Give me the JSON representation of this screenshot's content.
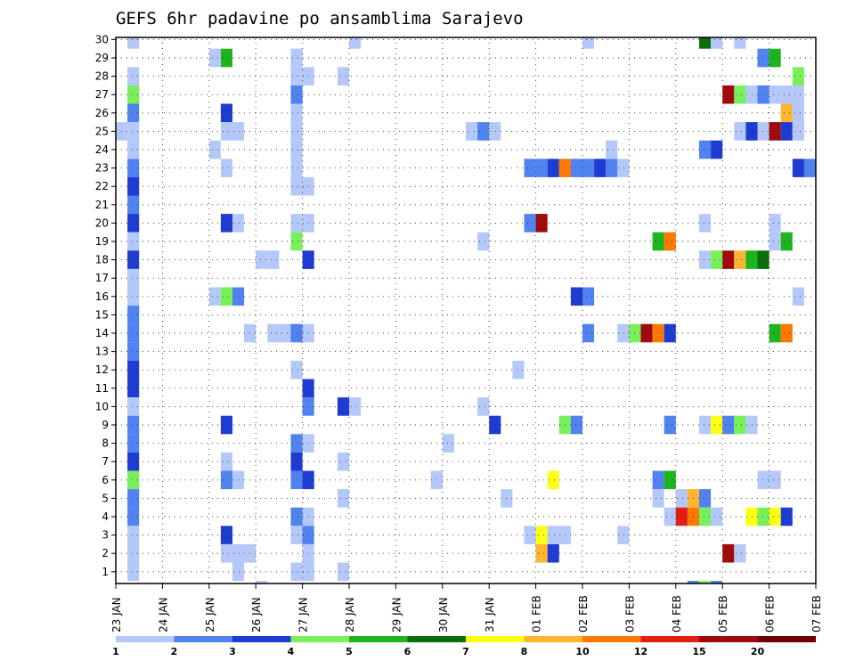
{
  "chart_data": {
    "type": "heatmap",
    "title": "GEFS 6hr padavine po ansamblima Sarajevo",
    "y_members": [
      1,
      30
    ],
    "x_tick_labels": [
      "23 JAN",
      "24 JAN",
      "25 JAN",
      "26 JAN",
      "27 JAN",
      "28 JAN",
      "29 JAN",
      "30 JAN",
      "31 JAN",
      "01 FEB",
      "02 FEB",
      "03 FEB",
      "04 FEB",
      "05 FEB",
      "06 FEB",
      "07 FEB"
    ],
    "grid": true,
    "legend": {
      "position": "bottom",
      "labels": [
        "1",
        "2",
        "3",
        "4",
        "5",
        "6",
        "7",
        "8",
        "10",
        "12",
        "15",
        "20"
      ],
      "colors": [
        "#b4c8fa",
        "#5082f0",
        "#1e3cd2",
        "#78f05a",
        "#1eb41e",
        "#0a6e0a",
        "#ffff14",
        "#ffb432",
        "#ff7800",
        "#e11e14",
        "#a00a0a",
        "#6e0000"
      ]
    },
    "cells": [
      {
        "m": 30,
        "s": 1,
        "c": 1
      },
      {
        "m": 30,
        "s": 20,
        "c": 1
      },
      {
        "m": 30,
        "s": 40,
        "c": 1
      },
      {
        "m": 30,
        "s": 50,
        "c": 6
      },
      {
        "m": 30,
        "s": 51,
        "c": 1
      },
      {
        "m": 30,
        "s": 53,
        "c": 1
      },
      {
        "m": 29,
        "s": 8,
        "c": 1
      },
      {
        "m": 29,
        "s": 9,
        "c": 5
      },
      {
        "m": 29,
        "s": 15,
        "c": 1
      },
      {
        "m": 29,
        "s": 55,
        "c": 2
      },
      {
        "m": 29,
        "s": 56,
        "c": 5
      },
      {
        "m": 28,
        "s": 1,
        "c": 1
      },
      {
        "m": 28,
        "s": 15,
        "c": 1
      },
      {
        "m": 28,
        "s": 16,
        "c": 1
      },
      {
        "m": 28,
        "s": 19,
        "c": 1
      },
      {
        "m": 28,
        "s": 58,
        "c": 4
      },
      {
        "m": 27,
        "s": 1,
        "c": 4
      },
      {
        "m": 27,
        "s": 15,
        "c": 2
      },
      {
        "m": 27,
        "s": 52,
        "c": 11
      },
      {
        "m": 27,
        "s": 53,
        "c": 4
      },
      {
        "m": 27,
        "s": 54,
        "c": 1
      },
      {
        "m": 27,
        "s": 55,
        "c": 2
      },
      {
        "m": 27,
        "s": 56,
        "c": 1
      },
      {
        "m": 27,
        "s": 57,
        "c": 1
      },
      {
        "m": 27,
        "s": 58,
        "c": 1
      },
      {
        "m": 26,
        "s": 1,
        "c": 2
      },
      {
        "m": 26,
        "s": 9,
        "c": 3
      },
      {
        "m": 26,
        "s": 15,
        "c": 1
      },
      {
        "m": 26,
        "s": 57,
        "c": 8
      },
      {
        "m": 26,
        "s": 58,
        "c": 1
      },
      {
        "m": 25,
        "s": 0,
        "c": 1
      },
      {
        "m": 25,
        "s": 1,
        "c": 1
      },
      {
        "m": 25,
        "s": 9,
        "c": 1
      },
      {
        "m": 25,
        "s": 10,
        "c": 1
      },
      {
        "m": 25,
        "s": 15,
        "c": 1
      },
      {
        "m": 25,
        "s": 30,
        "c": 1
      },
      {
        "m": 25,
        "s": 31,
        "c": 2
      },
      {
        "m": 25,
        "s": 32,
        "c": 1
      },
      {
        "m": 25,
        "s": 53,
        "c": 1
      },
      {
        "m": 25,
        "s": 54,
        "c": 3
      },
      {
        "m": 25,
        "s": 55,
        "c": 1
      },
      {
        "m": 25,
        "s": 56,
        "c": 11
      },
      {
        "m": 25,
        "s": 57,
        "c": 3
      },
      {
        "m": 25,
        "s": 58,
        "c": 1
      },
      {
        "m": 24,
        "s": 1,
        "c": 1
      },
      {
        "m": 24,
        "s": 8,
        "c": 1
      },
      {
        "m": 24,
        "s": 15,
        "c": 1
      },
      {
        "m": 24,
        "s": 42,
        "c": 1
      },
      {
        "m": 24,
        "s": 50,
        "c": 2
      },
      {
        "m": 24,
        "s": 51,
        "c": 3
      },
      {
        "m": 23,
        "s": 1,
        "c": 2
      },
      {
        "m": 23,
        "s": 9,
        "c": 1
      },
      {
        "m": 23,
        "s": 15,
        "c": 1
      },
      {
        "m": 23,
        "s": 35,
        "c": 2
      },
      {
        "m": 23,
        "s": 36,
        "c": 2
      },
      {
        "m": 23,
        "s": 37,
        "c": 3
      },
      {
        "m": 23,
        "s": 38,
        "c": 9
      },
      {
        "m": 23,
        "s": 39,
        "c": 2
      },
      {
        "m": 23,
        "s": 40,
        "c": 2
      },
      {
        "m": 23,
        "s": 41,
        "c": 3
      },
      {
        "m": 23,
        "s": 42,
        "c": 2
      },
      {
        "m": 23,
        "s": 43,
        "c": 1
      },
      {
        "m": 23,
        "s": 58,
        "c": 3
      },
      {
        "m": 23,
        "s": 59,
        "c": 2
      },
      {
        "m": 22,
        "s": 1,
        "c": 3
      },
      {
        "m": 22,
        "s": 15,
        "c": 1
      },
      {
        "m": 22,
        "s": 16,
        "c": 1
      },
      {
        "m": 21,
        "s": 1,
        "c": 2
      },
      {
        "m": 20,
        "s": 1,
        "c": 3
      },
      {
        "m": 20,
        "s": 9,
        "c": 3
      },
      {
        "m": 20,
        "s": 10,
        "c": 1
      },
      {
        "m": 20,
        "s": 15,
        "c": 1
      },
      {
        "m": 20,
        "s": 16,
        "c": 1
      },
      {
        "m": 20,
        "s": 35,
        "c": 2
      },
      {
        "m": 20,
        "s": 36,
        "c": 11
      },
      {
        "m": 20,
        "s": 50,
        "c": 1
      },
      {
        "m": 20,
        "s": 56,
        "c": 1
      },
      {
        "m": 19,
        "s": 1,
        "c": 1
      },
      {
        "m": 19,
        "s": 15,
        "c": 4
      },
      {
        "m": 19,
        "s": 31,
        "c": 1
      },
      {
        "m": 19,
        "s": 46,
        "c": 5
      },
      {
        "m": 19,
        "s": 47,
        "c": 9
      },
      {
        "m": 19,
        "s": 56,
        "c": 1
      },
      {
        "m": 19,
        "s": 57,
        "c": 5
      },
      {
        "m": 18,
        "s": 1,
        "c": 3
      },
      {
        "m": 18,
        "s": 12,
        "c": 1
      },
      {
        "m": 18,
        "s": 13,
        "c": 1
      },
      {
        "m": 18,
        "s": 16,
        "c": 3
      },
      {
        "m": 18,
        "s": 50,
        "c": 1
      },
      {
        "m": 18,
        "s": 51,
        "c": 4
      },
      {
        "m": 18,
        "s": 52,
        "c": 11
      },
      {
        "m": 18,
        "s": 53,
        "c": 8
      },
      {
        "m": 18,
        "s": 54,
        "c": 5
      },
      {
        "m": 18,
        "s": 55,
        "c": 6
      },
      {
        "m": 17,
        "s": 1,
        "c": 1
      },
      {
        "m": 16,
        "s": 1,
        "c": 1
      },
      {
        "m": 16,
        "s": 8,
        "c": 1
      },
      {
        "m": 16,
        "s": 9,
        "c": 4
      },
      {
        "m": 16,
        "s": 10,
        "c": 2
      },
      {
        "m": 16,
        "s": 39,
        "c": 3
      },
      {
        "m": 16,
        "s": 40,
        "c": 2
      },
      {
        "m": 16,
        "s": 58,
        "c": 1
      },
      {
        "m": 15,
        "s": 1,
        "c": 2
      },
      {
        "m": 14,
        "s": 1,
        "c": 2
      },
      {
        "m": 14,
        "s": 11,
        "c": 1
      },
      {
        "m": 14,
        "s": 13,
        "c": 1
      },
      {
        "m": 14,
        "s": 14,
        "c": 1
      },
      {
        "m": 14,
        "s": 15,
        "c": 2
      },
      {
        "m": 14,
        "s": 16,
        "c": 1
      },
      {
        "m": 14,
        "s": 40,
        "c": 2
      },
      {
        "m": 14,
        "s": 43,
        "c": 1
      },
      {
        "m": 14,
        "s": 44,
        "c": 4
      },
      {
        "m": 14,
        "s": 45,
        "c": 11
      },
      {
        "m": 14,
        "s": 46,
        "c": 9
      },
      {
        "m": 14,
        "s": 47,
        "c": 3
      },
      {
        "m": 14,
        "s": 56,
        "c": 5
      },
      {
        "m": 14,
        "s": 57,
        "c": 9
      },
      {
        "m": 13,
        "s": 1,
        "c": 2
      },
      {
        "m": 12,
        "s": 1,
        "c": 3
      },
      {
        "m": 12,
        "s": 15,
        "c": 1
      },
      {
        "m": 12,
        "s": 34,
        "c": 1
      },
      {
        "m": 11,
        "s": 1,
        "c": 3
      },
      {
        "m": 11,
        "s": 16,
        "c": 3
      },
      {
        "m": 10,
        "s": 1,
        "c": 1
      },
      {
        "m": 10,
        "s": 16,
        "c": 2
      },
      {
        "m": 10,
        "s": 19,
        "c": 3
      },
      {
        "m": 10,
        "s": 20,
        "c": 1
      },
      {
        "m": 10,
        "s": 31,
        "c": 1
      },
      {
        "m": 9,
        "s": 1,
        "c": 2
      },
      {
        "m": 9,
        "s": 9,
        "c": 3
      },
      {
        "m": 9,
        "s": 32,
        "c": 3
      },
      {
        "m": 9,
        "s": 38,
        "c": 4
      },
      {
        "m": 9,
        "s": 39,
        "c": 2
      },
      {
        "m": 9,
        "s": 47,
        "c": 2
      },
      {
        "m": 9,
        "s": 50,
        "c": 1
      },
      {
        "m": 9,
        "s": 51,
        "c": 7
      },
      {
        "m": 9,
        "s": 52,
        "c": 2
      },
      {
        "m": 9,
        "s": 53,
        "c": 4
      },
      {
        "m": 9,
        "s": 54,
        "c": 1
      },
      {
        "m": 8,
        "s": 1,
        "c": 2
      },
      {
        "m": 8,
        "s": 15,
        "c": 2
      },
      {
        "m": 8,
        "s": 16,
        "c": 1
      },
      {
        "m": 8,
        "s": 28,
        "c": 1
      },
      {
        "m": 7,
        "s": 1,
        "c": 3
      },
      {
        "m": 7,
        "s": 9,
        "c": 1
      },
      {
        "m": 7,
        "s": 15,
        "c": 3
      },
      {
        "m": 7,
        "s": 19,
        "c": 1
      },
      {
        "m": 6,
        "s": 1,
        "c": 4
      },
      {
        "m": 6,
        "s": 9,
        "c": 2
      },
      {
        "m": 6,
        "s": 10,
        "c": 1
      },
      {
        "m": 6,
        "s": 15,
        "c": 2
      },
      {
        "m": 6,
        "s": 16,
        "c": 3
      },
      {
        "m": 6,
        "s": 27,
        "c": 1
      },
      {
        "m": 6,
        "s": 37,
        "c": 7
      },
      {
        "m": 6,
        "s": 46,
        "c": 2
      },
      {
        "m": 6,
        "s": 47,
        "c": 5
      },
      {
        "m": 6,
        "s": 55,
        "c": 1
      },
      {
        "m": 6,
        "s": 56,
        "c": 1
      },
      {
        "m": 5,
        "s": 1,
        "c": 2
      },
      {
        "m": 5,
        "s": 19,
        "c": 1
      },
      {
        "m": 5,
        "s": 33,
        "c": 1
      },
      {
        "m": 5,
        "s": 46,
        "c": 1
      },
      {
        "m": 5,
        "s": 48,
        "c": 1
      },
      {
        "m": 5,
        "s": 49,
        "c": 8
      },
      {
        "m": 5,
        "s": 50,
        "c": 2
      },
      {
        "m": 4,
        "s": 1,
        "c": 2
      },
      {
        "m": 4,
        "s": 15,
        "c": 2
      },
      {
        "m": 4,
        "s": 16,
        "c": 1
      },
      {
        "m": 4,
        "s": 47,
        "c": 1
      },
      {
        "m": 4,
        "s": 48,
        "c": 10
      },
      {
        "m": 4,
        "s": 49,
        "c": 9
      },
      {
        "m": 4,
        "s": 50,
        "c": 4
      },
      {
        "m": 4,
        "s": 51,
        "c": 1
      },
      {
        "m": 4,
        "s": 54,
        "c": 7
      },
      {
        "m": 4,
        "s": 55,
        "c": 4
      },
      {
        "m": 4,
        "s": 56,
        "c": 7
      },
      {
        "m": 4,
        "s": 57,
        "c": 3
      },
      {
        "m": 3,
        "s": 1,
        "c": 1
      },
      {
        "m": 3,
        "s": 9,
        "c": 3
      },
      {
        "m": 3,
        "s": 15,
        "c": 1
      },
      {
        "m": 3,
        "s": 16,
        "c": 2
      },
      {
        "m": 3,
        "s": 35,
        "c": 1
      },
      {
        "m": 3,
        "s": 36,
        "c": 7
      },
      {
        "m": 3,
        "s": 37,
        "c": 1
      },
      {
        "m": 3,
        "s": 38,
        "c": 1
      },
      {
        "m": 3,
        "s": 43,
        "c": 1
      },
      {
        "m": 2,
        "s": 1,
        "c": 1
      },
      {
        "m": 2,
        "s": 9,
        "c": 1
      },
      {
        "m": 2,
        "s": 10,
        "c": 1
      },
      {
        "m": 2,
        "s": 11,
        "c": 1
      },
      {
        "m": 2,
        "s": 16,
        "c": 1
      },
      {
        "m": 2,
        "s": 36,
        "c": 8
      },
      {
        "m": 2,
        "s": 37,
        "c": 3
      },
      {
        "m": 2,
        "s": 52,
        "c": 11
      },
      {
        "m": 2,
        "s": 53,
        "c": 1
      },
      {
        "m": 1,
        "s": 1,
        "c": 1
      },
      {
        "m": 1,
        "s": 10,
        "c": 1
      },
      {
        "m": 1,
        "s": 15,
        "c": 1
      },
      {
        "m": 1,
        "s": 16,
        "c": 1
      },
      {
        "m": 1,
        "s": 19,
        "c": 1
      },
      {
        "m": 0,
        "s": 12,
        "c": 1
      },
      {
        "m": 0,
        "s": 49,
        "c": 2
      },
      {
        "m": 0,
        "s": 50,
        "c": 4
      },
      {
        "m": 0,
        "s": 51,
        "c": 2
      }
    ]
  }
}
